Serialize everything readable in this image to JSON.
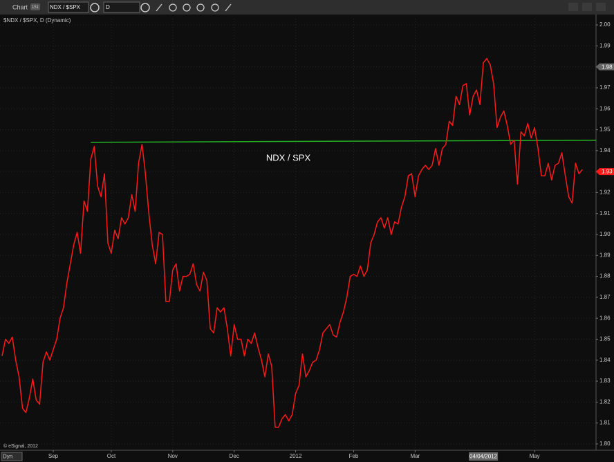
{
  "window": {
    "title": "Chart",
    "badge": "151",
    "symbol": "NDX / $SPX",
    "interval": "D",
    "dyn_button": "Dyn"
  },
  "chart_data": {
    "type": "line",
    "title": "$NDX / $SPX, D (Dynamic)",
    "annotation": "NDX / SPX",
    "copyright": "© eSignal, 2012",
    "series": [
      {
        "name": "NDX / SPX",
        "color": "#ff1a1a",
        "values": [
          1.842,
          1.85,
          1.848,
          1.851,
          1.84,
          1.832,
          1.817,
          1.815,
          1.822,
          1.831,
          1.821,
          1.819,
          1.839,
          1.844,
          1.84,
          1.845,
          1.85,
          1.86,
          1.865,
          1.877,
          1.886,
          1.895,
          1.901,
          1.891,
          1.916,
          1.911,
          1.936,
          1.942,
          1.923,
          1.918,
          1.929,
          1.896,
          1.891,
          1.902,
          1.898,
          1.908,
          1.905,
          1.908,
          1.919,
          1.911,
          1.934,
          1.943,
          1.929,
          1.91,
          1.895,
          1.886,
          1.901,
          1.9,
          1.868,
          1.868,
          1.883,
          1.886,
          1.873,
          1.88,
          1.88,
          1.881,
          1.886,
          1.876,
          1.873,
          1.882,
          1.878,
          1.855,
          1.853,
          1.865,
          1.863,
          1.865,
          1.855,
          1.842,
          1.857,
          1.85,
          1.85,
          1.842,
          1.85,
          1.848,
          1.853,
          1.846,
          1.84,
          1.832,
          1.843,
          1.837,
          1.808,
          1.808,
          1.812,
          1.814,
          1.811,
          1.814,
          1.824,
          1.828,
          1.843,
          1.832,
          1.835,
          1.839,
          1.84,
          1.845,
          1.853,
          1.855,
          1.857,
          1.852,
          1.851,
          1.858,
          1.863,
          1.87,
          1.88,
          1.881,
          1.88,
          1.885,
          1.88,
          1.883,
          1.896,
          1.9,
          1.906,
          1.908,
          1.903,
          1.908,
          1.9,
          1.906,
          1.905,
          1.913,
          1.918,
          1.928,
          1.929,
          1.918,
          1.928,
          1.931,
          1.933,
          1.931,
          1.933,
          1.941,
          1.933,
          1.941,
          1.943,
          1.954,
          1.952,
          1.966,
          1.962,
          1.971,
          1.972,
          1.957,
          1.966,
          1.969,
          1.962,
          1.982,
          1.984,
          1.981,
          1.972,
          1.951,
          1.956,
          1.959,
          1.952,
          1.943,
          1.945,
          1.924,
          1.949,
          1.947,
          1.953,
          1.946,
          1.951,
          1.941,
          1.928,
          1.928,
          1.934,
          1.926,
          1.933,
          1.934,
          1.939,
          1.928,
          1.918,
          1.915,
          1.934,
          1.929,
          1.931
        ]
      }
    ],
    "trendline": {
      "x": [
        26,
        174
      ],
      "values": [
        1.944,
        1.945
      ],
      "color": "#22b422"
    },
    "xlim": [
      -0.6,
      174
    ],
    "xticks": [
      {
        "value": 15,
        "label": "Sep"
      },
      {
        "value": 32,
        "label": "Oct"
      },
      {
        "value": 50,
        "label": "Nov"
      },
      {
        "value": 68,
        "label": "Dec"
      },
      {
        "value": 86,
        "label": "2012"
      },
      {
        "value": 103,
        "label": "Feb"
      },
      {
        "value": 121,
        "label": "Mar"
      },
      {
        "value": 156,
        "label": "May"
      }
    ],
    "cursor_x": {
      "value": 141,
      "label": "04/04/2012"
    },
    "ylim": [
      1.797,
      2.003
    ],
    "yticks": [
      {
        "value": 1.8,
        "label": "1.80"
      },
      1.81,
      1.82,
      1.83,
      1.84,
      1.85,
      1.86,
      1.87,
      1.88,
      1.89,
      {
        "value": 1.9,
        "label": "1.90"
      },
      1.91,
      1.92,
      1.93,
      1.94,
      1.95,
      1.96,
      1.97,
      1.98,
      1.99,
      {
        "value": 2,
        "label": "2.00"
      }
    ],
    "last_value": 1.93,
    "cursor_value": 1.98,
    "grid": true
  }
}
